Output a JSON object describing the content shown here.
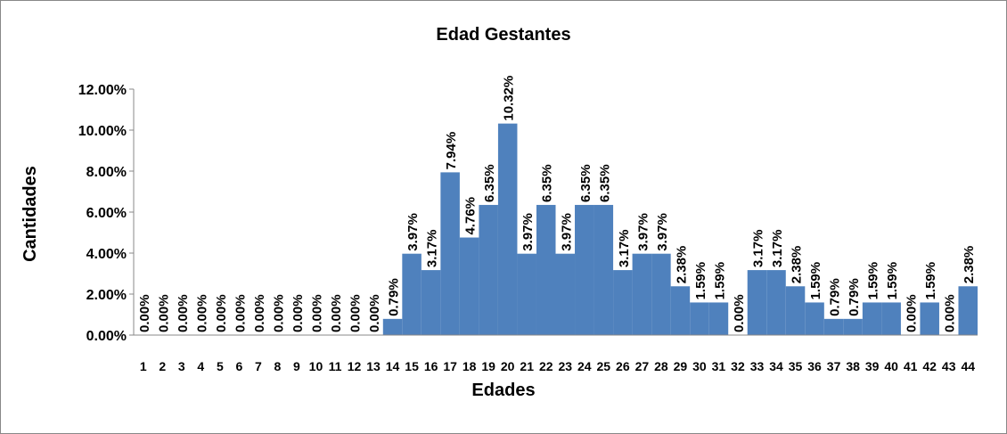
{
  "chart_data": {
    "type": "bar",
    "title": "Edad Gestantes",
    "x_label": "Edades",
    "y_label": "Cantidades",
    "categories": [
      "1",
      "2",
      "3",
      "4",
      "5",
      "6",
      "7",
      "8",
      "9",
      "10",
      "11",
      "12",
      "13",
      "14",
      "15",
      "16",
      "17",
      "18",
      "19",
      "20",
      "21",
      "22",
      "23",
      "24",
      "25",
      "26",
      "27",
      "28",
      "29",
      "30",
      "31",
      "32",
      "33",
      "34",
      "35",
      "36",
      "37",
      "38",
      "39",
      "40",
      "41",
      "42",
      "43",
      "44"
    ],
    "values": [
      0,
      0,
      0,
      0,
      0,
      0,
      0,
      0,
      0,
      0,
      0,
      0,
      0,
      0.79,
      3.97,
      3.17,
      7.94,
      4.76,
      6.35,
      10.32,
      3.97,
      6.35,
      3.97,
      6.35,
      6.35,
      3.17,
      3.97,
      3.97,
      2.38,
      1.59,
      1.59,
      0,
      3.17,
      3.17,
      2.38,
      1.59,
      0.79,
      0.79,
      1.59,
      1.59,
      0,
      1.59,
      0,
      2.38
    ],
    "value_labels": [
      "0.00%",
      "0.00%",
      "0.00%",
      "0.00%",
      "0.00%",
      "0.00%",
      "0.00%",
      "0.00%",
      "0.00%",
      "0.00%",
      "0.00%",
      "0.00%",
      "0.00%",
      "0.79%",
      "3.97%",
      "3.17%",
      "7.94%",
      "4.76%",
      "6.35%",
      "10.32%",
      "3.97%",
      "6.35%",
      "3.97%",
      "6.35%",
      "6.35%",
      "3.17%",
      "3.97%",
      "3.97%",
      "2.38%",
      "1.59%",
      "1.59%",
      "0.00%",
      "3.17%",
      "3.17%",
      "2.38%",
      "1.59%",
      "0.79%",
      "0.79%",
      "1.59%",
      "1.59%",
      "0.00%",
      "1.59%",
      "0.00%",
      "2.38%"
    ],
    "color": "#4f81bd",
    "ylim": [
      0,
      12
    ],
    "yticks": [
      {
        "value": 0,
        "label": "0.00%"
      },
      {
        "value": 2,
        "label": "2.00%"
      },
      {
        "value": 4,
        "label": "4.00%"
      },
      {
        "value": 6,
        "label": "6.00%"
      },
      {
        "value": 8,
        "label": "8.00%"
      },
      {
        "value": 10,
        "label": "10.00%"
      },
      {
        "value": 12,
        "label": "12.00%"
      }
    ]
  }
}
